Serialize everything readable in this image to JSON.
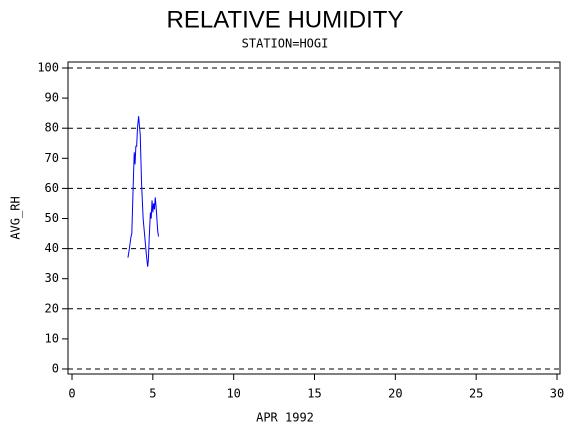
{
  "chart_data": {
    "type": "line",
    "title": "RELATIVE HUMIDITY",
    "subtitle": "STATION=HOGI",
    "x_label": "APR 1992",
    "y_label": "AVG_RH",
    "xlim": [
      0,
      30
    ],
    "xticks": [
      0,
      5,
      10,
      15,
      20,
      25,
      30
    ],
    "ylim": [
      0,
      100
    ],
    "yticks": [
      0,
      10,
      20,
      30,
      40,
      50,
      60,
      70,
      80,
      90,
      100
    ],
    "ygrid": [
      0,
      20,
      40,
      60,
      80,
      100
    ],
    "series": [
      {
        "color": "#0000ff",
        "x": [
          3.46,
          3.55,
          3.65,
          3.7,
          3.78,
          3.85,
          3.9,
          3.95,
          4.0,
          4.05,
          4.12,
          4.18,
          4.22,
          4.3,
          4.4,
          4.5,
          4.6,
          4.68,
          4.72,
          4.78,
          4.85,
          4.9,
          4.95,
          5.0,
          5.05,
          5.1,
          5.15,
          5.2,
          5.3,
          5.35
        ],
        "values": [
          37,
          40,
          44,
          45,
          60,
          72,
          68,
          74,
          74,
          80,
          84,
          80,
          78,
          62,
          50,
          44,
          38,
          34,
          36,
          44,
          52,
          50,
          56,
          52,
          55,
          53,
          57,
          54,
          46,
          44
        ]
      }
    ]
  }
}
